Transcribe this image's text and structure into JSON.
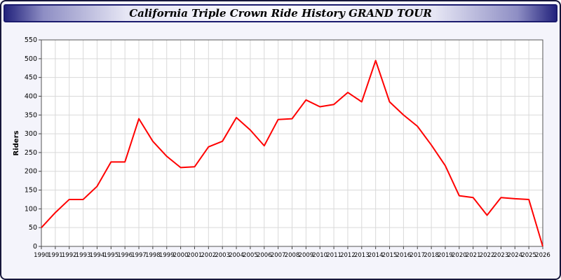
{
  "window": {
    "title": "California Triple Crown Ride History GRAND TOUR"
  },
  "chart_data": {
    "type": "line",
    "title": "California Triple Crown Ride History GRAND TOUR",
    "xlabel": "",
    "ylabel": "Riders",
    "ylim": [
      0,
      550
    ],
    "ytick_step": 50,
    "ytick_labels": [
      "0",
      "50",
      "100",
      "150",
      "200",
      "250",
      "300",
      "350",
      "400",
      "450",
      "500",
      "550"
    ],
    "grid": true,
    "legend": "none",
    "line_color": "#ff0000",
    "plot_background": "#ffffff",
    "grid_color": "#d9d9d9",
    "categories": [
      1990,
      1991,
      1992,
      1993,
      1994,
      1995,
      1996,
      1997,
      1998,
      1999,
      2000,
      2001,
      2002,
      2003,
      2004,
      2005,
      2006,
      2007,
      2008,
      2009,
      2010,
      2011,
      2012,
      2013,
      2014,
      2015,
      2016,
      2017,
      2018,
      2019,
      2020,
      2021,
      2022,
      2023,
      2024,
      2025,
      2026
    ],
    "values": [
      50,
      90,
      125,
      125,
      160,
      225,
      225,
      340,
      280,
      240,
      210,
      212,
      265,
      280,
      343,
      310,
      268,
      338,
      340,
      390,
      372,
      378,
      410,
      385,
      495,
      385,
      350,
      320,
      270,
      215,
      135,
      130,
      83,
      130,
      127,
      125,
      0
    ]
  }
}
